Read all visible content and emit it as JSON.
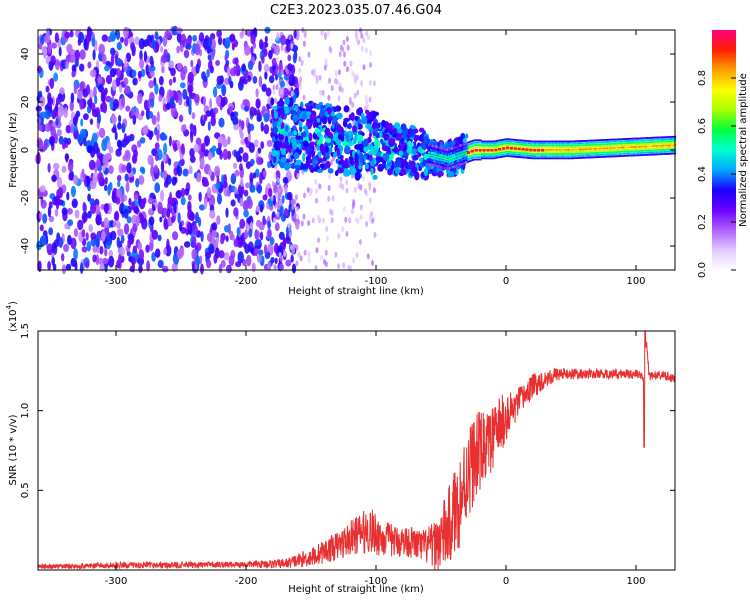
{
  "title": "C2E3.2023.035.07.46.G04",
  "chart_data": [
    {
      "type": "heatmap",
      "xlabel": "Height of straight line (km)",
      "ylabel": "Frequency (Hz)",
      "xlim": [
        -360,
        130
      ],
      "ylim": [
        -50,
        50
      ],
      "x_ticks": [
        -300,
        -200,
        -100,
        0,
        100
      ],
      "y_ticks": [
        -40,
        -20,
        0,
        20,
        40
      ],
      "colorbar": {
        "label": "Normalized spectral amplitude",
        "range": [
          0.0,
          1.0
        ],
        "ticks": [
          0.0,
          0.2,
          0.4,
          0.6,
          0.8
        ],
        "colors": [
          "#ffffff",
          "#e0c8ff",
          "#b060ff",
          "#6a00ff",
          "#1a00ff",
          "#00a8ff",
          "#00ffd0",
          "#00ff40",
          "#a8ff00",
          "#ffff00",
          "#ffa000",
          "#ff2000",
          "#ff0080"
        ]
      },
      "description_values": {
        "noise_region_x": [
          -360,
          -180
        ],
        "noise_amplitude": 0.5,
        "scatter_region_x": [
          -180,
          -35
        ],
        "signal_region_x": [
          -35,
          130
        ],
        "signal_frequency_near_zero": true
      },
      "ridge": [
        {
          "x": -170,
          "y": 7
        },
        {
          "x": -140,
          "y": 5
        },
        {
          "x": -120,
          "y": 3
        },
        {
          "x": -100,
          "y": 2
        },
        {
          "x": -80,
          "y": 0
        },
        {
          "x": -60,
          "y": -2
        },
        {
          "x": -45,
          "y": -4
        },
        {
          "x": -35,
          "y": -2
        },
        {
          "x": -25,
          "y": 0
        },
        {
          "x": -10,
          "y": 0
        },
        {
          "x": 0,
          "y": 1
        },
        {
          "x": 20,
          "y": 0
        },
        {
          "x": 50,
          "y": 0
        },
        {
          "x": 90,
          "y": 1
        },
        {
          "x": 130,
          "y": 2
        }
      ]
    },
    {
      "type": "line",
      "xlabel": "Height of straight line (km)",
      "ylabel": "SNR (10 * v/v)",
      "exponent_label": "(x10",
      "exponent_power": "4",
      "exponent_close": ")",
      "xlim": [
        -360,
        130
      ],
      "ylim": [
        0,
        15000
      ],
      "x_ticks": [
        -300,
        -200,
        -100,
        0,
        100
      ],
      "y_ticks": [
        0.5,
        1.0,
        1.5
      ],
      "y_tick_labels": [
        "0.5",
        "1.0",
        "1.5"
      ],
      "series": [
        {
          "color": "#e83030",
          "x": [
            -360,
            -300,
            -250,
            -200,
            -170,
            -150,
            -130,
            -115,
            -105,
            -95,
            -85,
            -75,
            -65,
            -55,
            -45,
            -35,
            -28,
            -20,
            -12,
            -5,
            0,
            10,
            20,
            30,
            40,
            60,
            80,
            100,
            106,
            108,
            110,
            120,
            130
          ],
          "y": [
            200,
            300,
            300,
            350,
            400,
            800,
            1500,
            2200,
            2500,
            2000,
            1800,
            1800,
            1500,
            1500,
            2500,
            4500,
            6500,
            7500,
            8000,
            9000,
            9500,
            10500,
            11500,
            12000,
            12300,
            12300,
            12300,
            12300,
            12000,
            14500,
            12200,
            12200,
            12000
          ],
          "noise_amplitude": [
            150,
            200,
            200,
            200,
            300,
            600,
            900,
            1200,
            1500,
            1200,
            1000,
            1000,
            1000,
            1500,
            2500,
            3000,
            3000,
            2500,
            2000,
            2000,
            1500,
            1000,
            800,
            600,
            400,
            300,
            300,
            300,
            300,
            300,
            300,
            300,
            300
          ],
          "spikes": [
            {
              "x": 106,
              "y": 7700
            },
            {
              "x": 107,
              "y": 15000
            },
            {
              "x": 12,
              "y": 6200
            }
          ]
        }
      ]
    }
  ]
}
